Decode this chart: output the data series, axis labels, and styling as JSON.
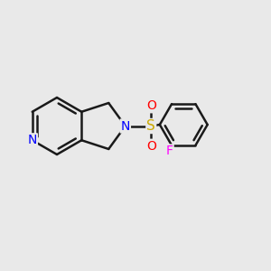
{
  "background_color": "#e9e9e9",
  "bond_color": "#1a1a1a",
  "bond_width": 1.8,
  "atom_colors": {
    "N_pyridine": "#0000ff",
    "N_amine": "#0000ff",
    "S": "#ccaa00",
    "O": "#ff0000",
    "F": "#ff00ff",
    "C": "#1a1a1a"
  },
  "font_size_atoms": 10,
  "fig_width": 3.0,
  "fig_height": 3.0,
  "dpi": 100
}
